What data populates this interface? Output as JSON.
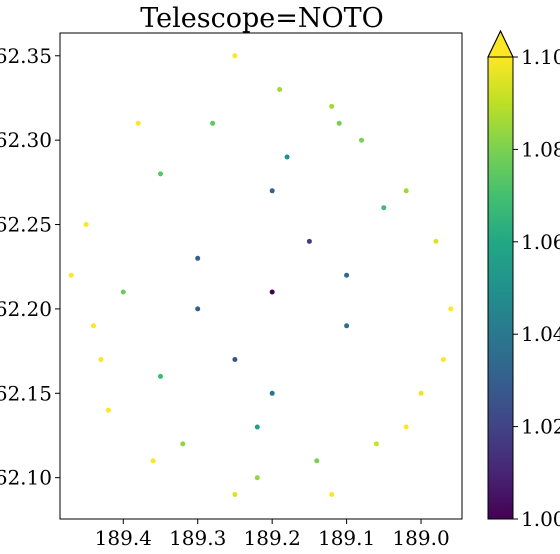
{
  "chart_data": {
    "type": "scatter",
    "title": "Telescope=NOTO",
    "xlabel": "",
    "ylabel": "",
    "xlim": [
      189.485,
      188.945
    ],
    "ylim": [
      62.0755,
      62.3635
    ],
    "x_inverted": true,
    "x_ticks": [
      189.4,
      189.3,
      189.2,
      189.1,
      189.0
    ],
    "x_tick_labels": [
      "189.4",
      "189.3",
      "189.2",
      "189.1",
      "189.0"
    ],
    "y_ticks": [
      62.1,
      62.15,
      62.2,
      62.25,
      62.3,
      62.35
    ],
    "y_tick_labels": [
      "62.10",
      "62.15",
      "62.20",
      "62.25",
      "62.30",
      "62.35"
    ],
    "grid": false,
    "colorbar": {
      "colormap": "viridis",
      "range": [
        1.0,
        1.1
      ],
      "extend": "max",
      "ticks": [
        1.0,
        1.02,
        1.04,
        1.06,
        1.08,
        1.1
      ],
      "tick_labels": [
        "1.00",
        "1.02",
        "1.04",
        "1.06",
        "1.08",
        "1.10"
      ],
      "extend_color": "#fde725"
    },
    "center": [
      189.205,
      62.214
    ],
    "points": [
      [
        189.2,
        62.21
      ],
      [
        189.15,
        62.24
      ],
      [
        189.25,
        62.17
      ],
      [
        189.3,
        62.23
      ],
      [
        189.1,
        62.19
      ],
      [
        189.35,
        62.16
      ],
      [
        189.22,
        62.13
      ],
      [
        189.05,
        62.26
      ],
      [
        189.4,
        62.21
      ],
      [
        189.18,
        62.29
      ],
      [
        189.28,
        62.31
      ],
      [
        189.12,
        62.32
      ],
      [
        189.45,
        62.25
      ],
      [
        189.43,
        62.17
      ],
      [
        189.35,
        62.28
      ],
      [
        189.08,
        62.3
      ],
      [
        188.98,
        62.24
      ],
      [
        188.96,
        62.2
      ],
      [
        189.0,
        62.15
      ],
      [
        189.06,
        62.12
      ],
      [
        189.14,
        62.11
      ],
      [
        189.22,
        62.1
      ],
      [
        189.32,
        62.12
      ],
      [
        189.42,
        62.14
      ],
      [
        189.47,
        62.22
      ],
      [
        189.38,
        62.31
      ],
      [
        189.25,
        62.35
      ],
      [
        189.19,
        62.33
      ],
      [
        189.11,
        62.31
      ],
      [
        189.02,
        62.27
      ],
      [
        188.97,
        62.17
      ],
      [
        189.02,
        62.13
      ],
      [
        189.12,
        62.09
      ],
      [
        189.25,
        62.09
      ],
      [
        189.36,
        62.11
      ],
      [
        189.44,
        62.19
      ],
      [
        189.3,
        62.2
      ],
      [
        189.1,
        62.22
      ],
      [
        189.2,
        62.27
      ],
      [
        189.2,
        62.15
      ]
    ]
  }
}
